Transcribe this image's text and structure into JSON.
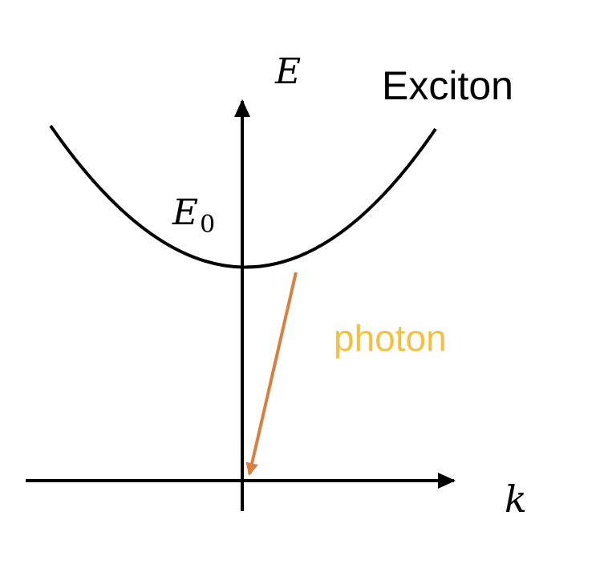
{
  "diagram": {
    "y_axis_label": "E",
    "x_axis_label": "k",
    "energy_label_main": "E",
    "energy_label_sub": "0",
    "curve_label": "Exciton",
    "transition_label": "photon"
  },
  "colors": {
    "axis": "#000000",
    "curve": "#000000",
    "photon_arrow": "#d97f40",
    "photon_text": "#f2c141"
  }
}
